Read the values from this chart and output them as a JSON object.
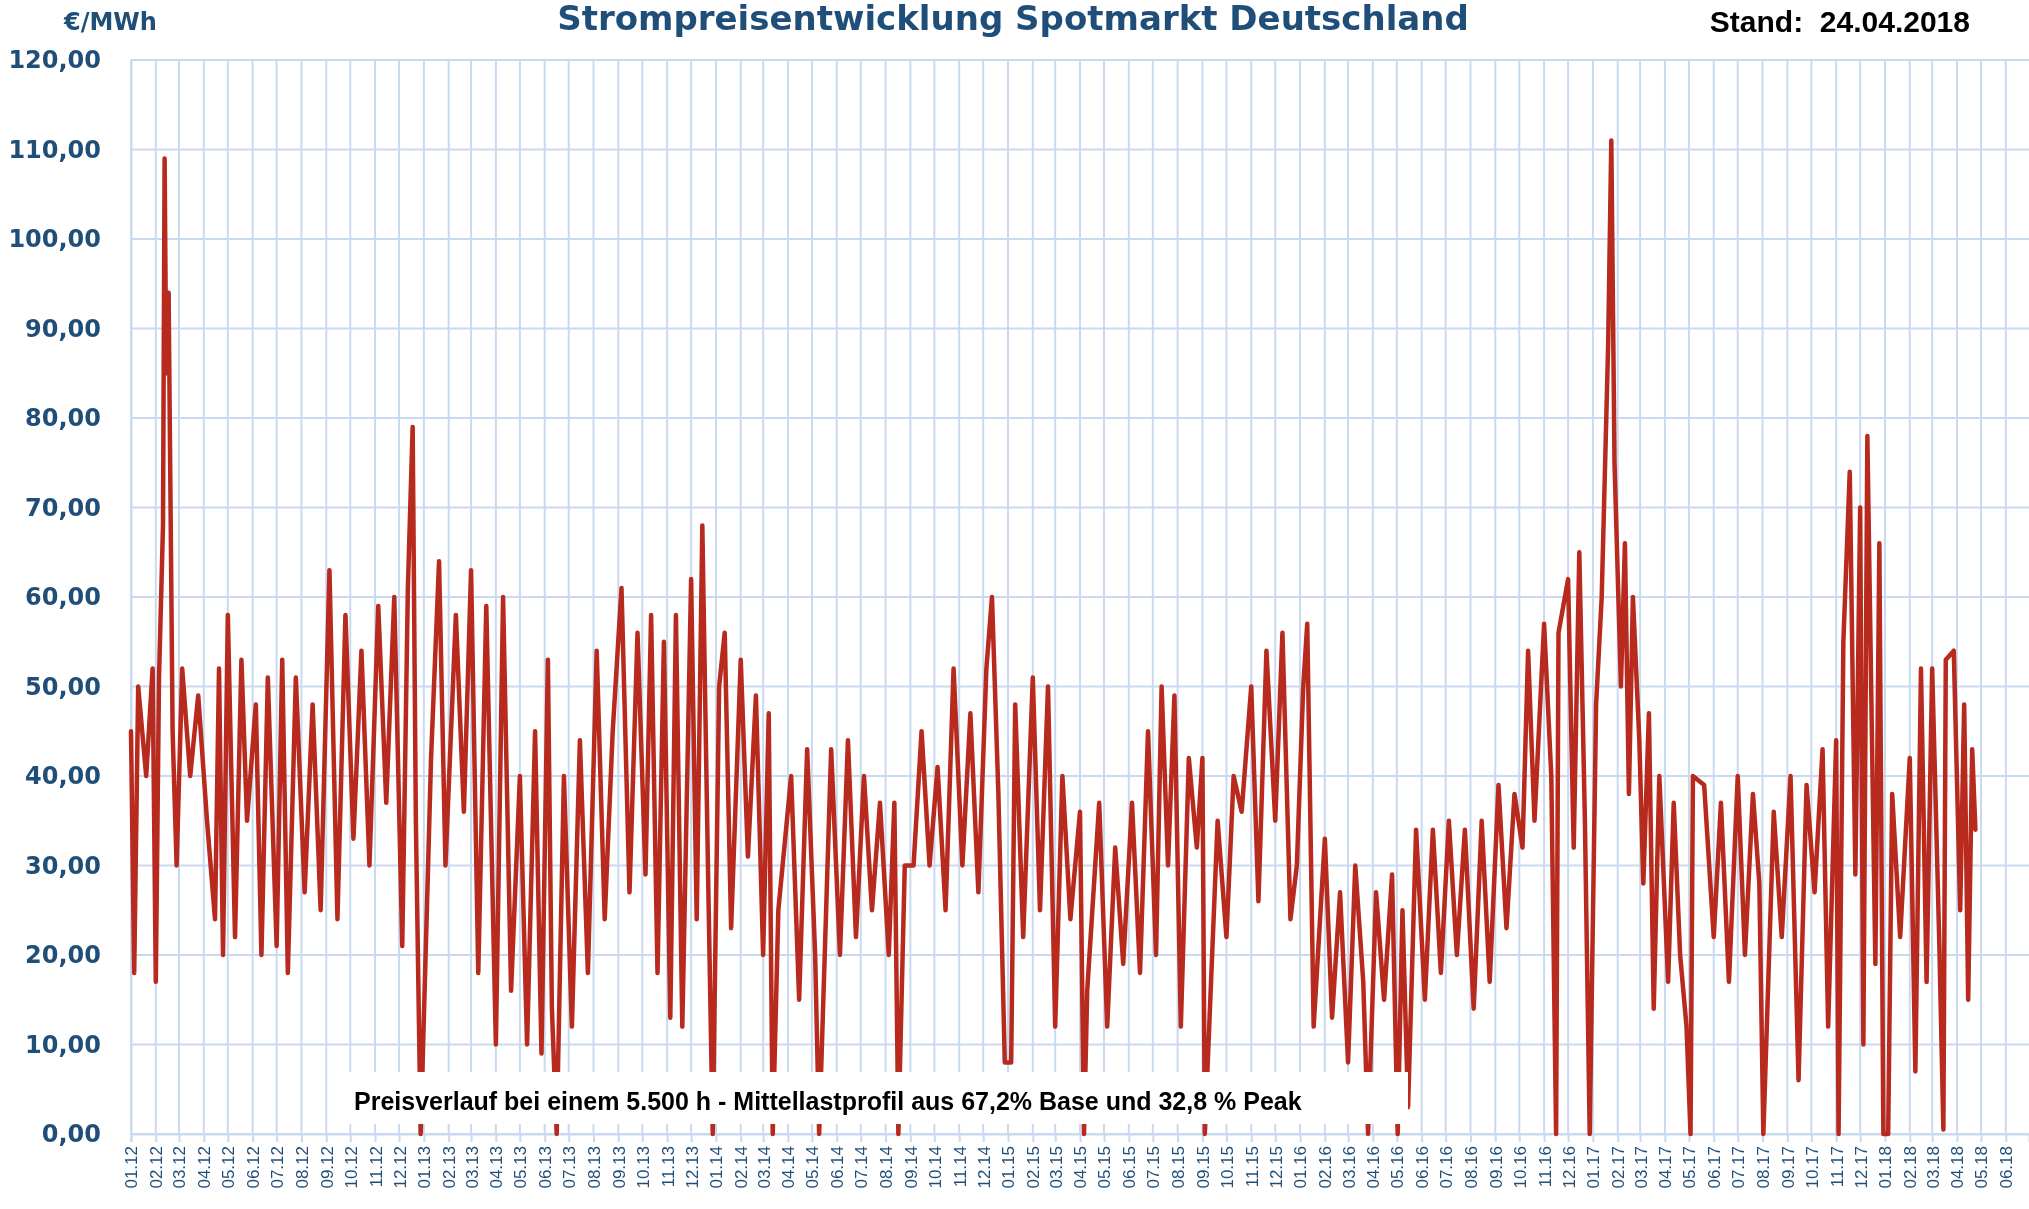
{
  "chart_data": {
    "type": "line",
    "title": "Strompreisentwicklung Spotmarkt Deutschland",
    "ylabel": "€/MWh",
    "annotations": [
      "Stand:  24.04.2018",
      "Preisverlauf bei einem 5.500 h - Mittellastprofil aus 67,2% Base und 32,8 % Peak"
    ],
    "xlim": [
      "2012-01-01",
      "2018-06-30"
    ],
    "xticks": [
      {
        "value": "2012-01-01",
        "label": "01.12"
      },
      {
        "value": "2012-02-01",
        "label": "02.12"
      },
      {
        "value": "2012-03-01",
        "label": "03.12"
      },
      {
        "value": "2012-04-01",
        "label": "04.12"
      },
      {
        "value": "2012-05-01",
        "label": "05.12"
      },
      {
        "value": "2012-06-01",
        "label": "06.12"
      },
      {
        "value": "2012-07-01",
        "label": "07.12"
      },
      {
        "value": "2012-08-01",
        "label": "08.12"
      },
      {
        "value": "2012-09-01",
        "label": "09.12"
      },
      {
        "value": "2012-10-01",
        "label": "10.12"
      },
      {
        "value": "2012-11-01",
        "label": "11.12"
      },
      {
        "value": "2012-12-01",
        "label": "12.12"
      },
      {
        "value": "2013-01-01",
        "label": "01.13"
      },
      {
        "value": "2013-02-01",
        "label": "02.13"
      },
      {
        "value": "2013-03-01",
        "label": "03.13"
      },
      {
        "value": "2013-04-01",
        "label": "04.13"
      },
      {
        "value": "2013-05-01",
        "label": "05.13"
      },
      {
        "value": "2013-06-01",
        "label": "06.13"
      },
      {
        "value": "2013-07-01",
        "label": "07.13"
      },
      {
        "value": "2013-08-01",
        "label": "08.13"
      },
      {
        "value": "2013-09-01",
        "label": "09.13"
      },
      {
        "value": "2013-10-01",
        "label": "10.13"
      },
      {
        "value": "2013-11-01",
        "label": "11.13"
      },
      {
        "value": "2013-12-01",
        "label": "12.13"
      },
      {
        "value": "2014-01-01",
        "label": "01.14"
      },
      {
        "value": "2014-02-01",
        "label": "02.14"
      },
      {
        "value": "2014-03-01",
        "label": "03.14"
      },
      {
        "value": "2014-04-01",
        "label": "04.14"
      },
      {
        "value": "2014-05-01",
        "label": "05.14"
      },
      {
        "value": "2014-06-01",
        "label": "06.14"
      },
      {
        "value": "2014-07-01",
        "label": "07.14"
      },
      {
        "value": "2014-08-01",
        "label": "08.14"
      },
      {
        "value": "2014-09-01",
        "label": "09.14"
      },
      {
        "value": "2014-10-01",
        "label": "10.14"
      },
      {
        "value": "2014-11-01",
        "label": "11.14"
      },
      {
        "value": "2014-12-01",
        "label": "12.14"
      },
      {
        "value": "2015-01-01",
        "label": "01.15"
      },
      {
        "value": "2015-02-01",
        "label": "02.15"
      },
      {
        "value": "2015-03-01",
        "label": "03.15"
      },
      {
        "value": "2015-04-01",
        "label": "04.15"
      },
      {
        "value": "2015-05-01",
        "label": "05.15"
      },
      {
        "value": "2015-06-01",
        "label": "06.15"
      },
      {
        "value": "2015-07-01",
        "label": "07.15"
      },
      {
        "value": "2015-08-01",
        "label": "08.15"
      },
      {
        "value": "2015-09-01",
        "label": "09.15"
      },
      {
        "value": "2015-10-01",
        "label": "10.15"
      },
      {
        "value": "2015-11-01",
        "label": "11.15"
      },
      {
        "value": "2015-12-01",
        "label": "12.15"
      },
      {
        "value": "2016-01-01",
        "label": "01.16"
      },
      {
        "value": "2016-02-01",
        "label": "02.16"
      },
      {
        "value": "2016-03-01",
        "label": "03.16"
      },
      {
        "value": "2016-04-01",
        "label": "04.16"
      },
      {
        "value": "2016-05-01",
        "label": "05.16"
      },
      {
        "value": "2016-06-01",
        "label": "06.16"
      },
      {
        "value": "2016-07-01",
        "label": "07.16"
      },
      {
        "value": "2016-08-01",
        "label": "08.16"
      },
      {
        "value": "2016-09-01",
        "label": "09.16"
      },
      {
        "value": "2016-10-01",
        "label": "10.16"
      },
      {
        "value": "2016-11-01",
        "label": "11.16"
      },
      {
        "value": "2016-12-01",
        "label": "12.16"
      },
      {
        "value": "2017-01-01",
        "label": "01.17"
      },
      {
        "value": "2017-02-01",
        "label": "02.17"
      },
      {
        "value": "2017-03-01",
        "label": "03.17"
      },
      {
        "value": "2017-04-01",
        "label": "04.17"
      },
      {
        "value": "2017-05-01",
        "label": "05.17"
      },
      {
        "value": "2017-06-01",
        "label": "06.17"
      },
      {
        "value": "2017-07-01",
        "label": "07.17"
      },
      {
        "value": "2017-08-01",
        "label": "08.17"
      },
      {
        "value": "2017-09-01",
        "label": "09.17"
      },
      {
        "value": "2017-10-01",
        "label": "10.17"
      },
      {
        "value": "2017-11-01",
        "label": "11.17"
      },
      {
        "value": "2017-12-01",
        "label": "12.17"
      },
      {
        "value": "2018-01-01",
        "label": "01.18"
      },
      {
        "value": "2018-02-01",
        "label": "02.18"
      },
      {
        "value": "2018-03-01",
        "label": "03.18"
      },
      {
        "value": "2018-04-01",
        "label": "04.18"
      },
      {
        "value": "2018-05-01",
        "label": "05.18"
      },
      {
        "value": "2018-06-01",
        "label": "06.18"
      }
    ],
    "ylim": [
      0,
      120
    ],
    "yticks": [
      {
        "value": 0,
        "label": "0,00"
      },
      {
        "value": 10,
        "label": "10,00"
      },
      {
        "value": 20,
        "label": "20,00"
      },
      {
        "value": 30,
        "label": "30,00"
      },
      {
        "value": 40,
        "label": "40,00"
      },
      {
        "value": 50,
        "label": "50,00"
      },
      {
        "value": 60,
        "label": "60,00"
      },
      {
        "value": 70,
        "label": "70,00"
      },
      {
        "value": 80,
        "label": "80,00"
      },
      {
        "value": 90,
        "label": "90,00"
      },
      {
        "value": 100,
        "label": "100,00"
      },
      {
        "value": 110,
        "label": "110,00"
      },
      {
        "value": 120,
        "label": "120,00"
      }
    ],
    "grid": true,
    "marker": "none",
    "line_style": "solid",
    "series": [
      {
        "color": "#b8291e",
        "x": [
          "2012-01-01",
          "2012-01-05",
          "2012-01-10",
          "2012-01-20",
          "2012-01-28",
          "2012-02-01",
          "2012-02-05",
          "2012-02-10",
          "2012-02-12",
          "2012-02-14",
          "2012-02-17",
          "2012-02-22",
          "2012-02-27",
          "2012-03-05",
          "2012-03-15",
          "2012-03-25",
          "2012-04-05",
          "2012-04-15",
          "2012-04-20",
          "2012-04-25",
          "2012-05-01",
          "2012-05-10",
          "2012-05-18",
          "2012-05-25",
          "2012-06-05",
          "2012-06-12",
          "2012-06-20",
          "2012-07-01",
          "2012-07-08",
          "2012-07-15",
          "2012-07-25",
          "2012-08-05",
          "2012-08-15",
          "2012-08-25",
          "2012-09-05",
          "2012-09-15",
          "2012-09-25",
          "2012-10-05",
          "2012-10-15",
          "2012-10-25",
          "2012-11-05",
          "2012-11-15",
          "2012-11-25",
          "2012-12-05",
          "2012-12-12",
          "2012-12-18",
          "2012-12-22",
          "2012-12-28",
          "2013-01-10",
          "2013-01-20",
          "2013-01-28",
          "2013-02-10",
          "2013-02-20",
          "2013-03-01",
          "2013-03-10",
          "2013-03-20",
          "2013-04-01",
          "2013-04-10",
          "2013-04-20",
          "2013-05-01",
          "2013-05-10",
          "2013-05-20",
          "2013-05-28",
          "2013-06-05",
          "2013-06-10",
          "2013-06-16",
          "2013-06-25",
          "2013-07-05",
          "2013-07-15",
          "2013-07-25",
          "2013-08-05",
          "2013-08-15",
          "2013-08-25",
          "2013-09-05",
          "2013-09-15",
          "2013-09-25",
          "2013-10-05",
          "2013-10-12",
          "2013-10-20",
          "2013-10-28",
          "2013-11-05",
          "2013-11-12",
          "2013-11-20",
          "2013-12-01",
          "2013-12-08",
          "2013-12-15",
          "2013-12-22",
          "2013-12-28",
          "2014-01-05",
          "2014-01-12",
          "2014-01-20",
          "2014-02-01",
          "2014-02-10",
          "2014-02-20",
          "2014-03-01",
          "2014-03-08",
          "2014-03-13",
          "2014-03-20",
          "2014-04-05",
          "2014-04-15",
          "2014-04-25",
          "2014-05-05",
          "2014-05-10",
          "2014-05-25",
          "2014-06-05",
          "2014-06-15",
          "2014-06-25",
          "2014-07-05",
          "2014-07-15",
          "2014-07-25",
          "2014-08-05",
          "2014-08-12",
          "2014-08-17",
          "2014-08-25",
          "2014-09-05",
          "2014-09-15",
          "2014-09-25",
          "2014-10-05",
          "2014-10-15",
          "2014-10-25",
          "2014-11-05",
          "2014-11-15",
          "2014-11-25",
          "2014-12-05",
          "2014-12-12",
          "2014-12-20",
          "2014-12-28",
          "2015-01-05",
          "2015-01-10",
          "2015-01-20",
          "2015-02-01",
          "2015-02-10",
          "2015-02-20",
          "2015-03-01",
          "2015-03-10",
          "2015-03-20",
          "2015-04-01",
          "2015-04-06",
          "2015-04-10",
          "2015-04-25",
          "2015-05-05",
          "2015-05-15",
          "2015-05-25",
          "2015-06-05",
          "2015-06-15",
          "2015-06-25",
          "2015-07-05",
          "2015-07-12",
          "2015-07-20",
          "2015-07-28",
          "2015-08-05",
          "2015-08-15",
          "2015-08-25",
          "2015-09-01",
          "2015-09-04",
          "2015-09-20",
          "2015-10-01",
          "2015-10-10",
          "2015-10-20",
          "2015-11-01",
          "2015-11-10",
          "2015-11-20",
          "2015-12-01",
          "2015-12-10",
          "2015-12-20",
          "2015-12-28",
          "2016-01-05",
          "2016-01-10",
          "2016-01-18",
          "2016-02-01",
          "2016-02-10",
          "2016-02-20",
          "2016-03-01",
          "2016-03-10",
          "2016-03-20",
          "2016-03-26",
          "2016-04-05",
          "2016-04-15",
          "2016-04-25",
          "2016-05-02",
          "2016-05-08",
          "2016-05-15",
          "2016-05-25",
          "2016-06-05",
          "2016-06-15",
          "2016-06-25",
          "2016-07-05",
          "2016-07-15",
          "2016-07-25",
          "2016-08-05",
          "2016-08-15",
          "2016-08-25",
          "2016-09-05",
          "2016-09-15",
          "2016-09-25",
          "2016-10-05",
          "2016-10-12",
          "2016-10-20",
          "2016-11-01",
          "2016-11-10",
          "2016-11-16",
          "2016-11-19",
          "2016-12-01",
          "2016-12-08",
          "2016-12-15",
          "2016-12-22",
          "2016-12-28",
          "2017-01-05",
          "2017-01-12",
          "2017-01-20",
          "2017-01-24",
          "2017-01-28",
          "2017-02-05",
          "2017-02-10",
          "2017-02-15",
          "2017-02-20",
          "2017-02-28",
          "2017-03-05",
          "2017-03-12",
          "2017-03-18",
          "2017-03-25",
          "2017-04-05",
          "2017-04-12",
          "2017-04-20",
          "2017-04-28",
          "2017-05-03",
          "2017-05-06",
          "2017-05-20",
          "2017-06-01",
          "2017-06-10",
          "2017-06-20",
          "2017-07-01",
          "2017-07-10",
          "2017-07-20",
          "2017-07-28",
          "2017-08-02",
          "2017-08-15",
          "2017-08-25",
          "2017-09-05",
          "2017-09-15",
          "2017-09-25",
          "2017-10-05",
          "2017-10-15",
          "2017-10-22",
          "2017-11-01",
          "2017-11-04",
          "2017-11-10",
          "2017-11-18",
          "2017-11-25",
          "2017-12-01",
          "2017-12-05",
          "2017-12-10",
          "2017-12-20",
          "2017-12-25",
          "2017-12-30",
          "2018-01-05",
          "2018-01-10",
          "2018-01-20",
          "2018-02-01",
          "2018-02-08",
          "2018-02-15",
          "2018-02-22",
          "2018-03-01",
          "2018-03-10",
          "2018-03-15",
          "2018-03-18",
          "2018-03-28",
          "2018-04-05",
          "2018-04-10",
          "2018-04-15",
          "2018-04-20",
          "2018-04-24"
        ],
        "values": [
          45,
          18,
          50,
          40,
          52,
          17,
          51,
          68,
          109,
          85,
          94,
          45,
          30,
          52,
          40,
          49,
          35,
          24,
          52,
          20,
          58,
          22,
          53,
          35,
          48,
          20,
          51,
          21,
          53,
          18,
          51,
          27,
          48,
          25,
          63,
          24,
          58,
          33,
          54,
          30,
          59,
          37,
          60,
          21,
          61,
          79,
          35,
          0,
          42,
          64,
          30,
          58,
          36,
          63,
          18,
          59,
          10,
          60,
          16,
          40,
          10,
          45,
          9,
          53,
          14,
          0,
          40,
          12,
          44,
          18,
          54,
          24,
          45,
          61,
          27,
          56,
          29,
          58,
          18,
          55,
          13,
          58,
          12,
          62,
          24,
          68,
          30,
          0,
          50,
          56,
          23,
          53,
          31,
          49,
          20,
          47,
          0,
          25,
          40,
          15,
          43,
          20,
          0,
          43,
          20,
          44,
          22,
          40,
          25,
          37,
          20,
          37,
          0,
          30,
          30,
          45,
          30,
          41,
          25,
          52,
          30,
          47,
          27,
          52,
          60,
          38,
          8,
          8,
          48,
          22,
          51,
          25,
          50,
          12,
          40,
          24,
          36,
          0,
          16,
          37,
          12,
          32,
          19,
          37,
          18,
          45,
          20,
          50,
          30,
          49,
          12,
          42,
          32,
          42,
          0,
          35,
          22,
          40,
          36,
          50,
          26,
          54,
          35,
          56,
          24,
          30,
          50,
          57,
          12,
          33,
          13,
          27,
          8,
          30,
          17,
          0,
          27,
          15,
          29,
          0,
          25,
          3,
          34,
          15,
          34,
          18,
          35,
          20,
          34,
          14,
          35,
          17,
          39,
          23,
          38,
          32,
          54,
          35,
          57,
          40,
          0,
          56,
          62,
          32,
          65,
          35,
          0,
          48,
          60,
          88,
          111,
          75,
          50,
          66,
          38,
          60,
          44,
          28,
          47,
          14,
          40,
          17,
          37,
          20,
          12,
          0,
          40,
          39,
          22,
          37,
          17,
          40,
          20,
          38,
          28,
          0,
          36,
          22,
          40,
          6,
          39,
          27,
          43,
          12,
          44,
          0,
          55,
          74,
          29,
          70,
          10,
          78,
          19,
          66,
          0,
          0,
          38,
          22,
          42,
          7,
          52,
          17,
          52,
          21,
          0.5,
          53,
          54,
          25,
          48,
          15,
          43,
          34
        ]
      }
    ]
  }
}
